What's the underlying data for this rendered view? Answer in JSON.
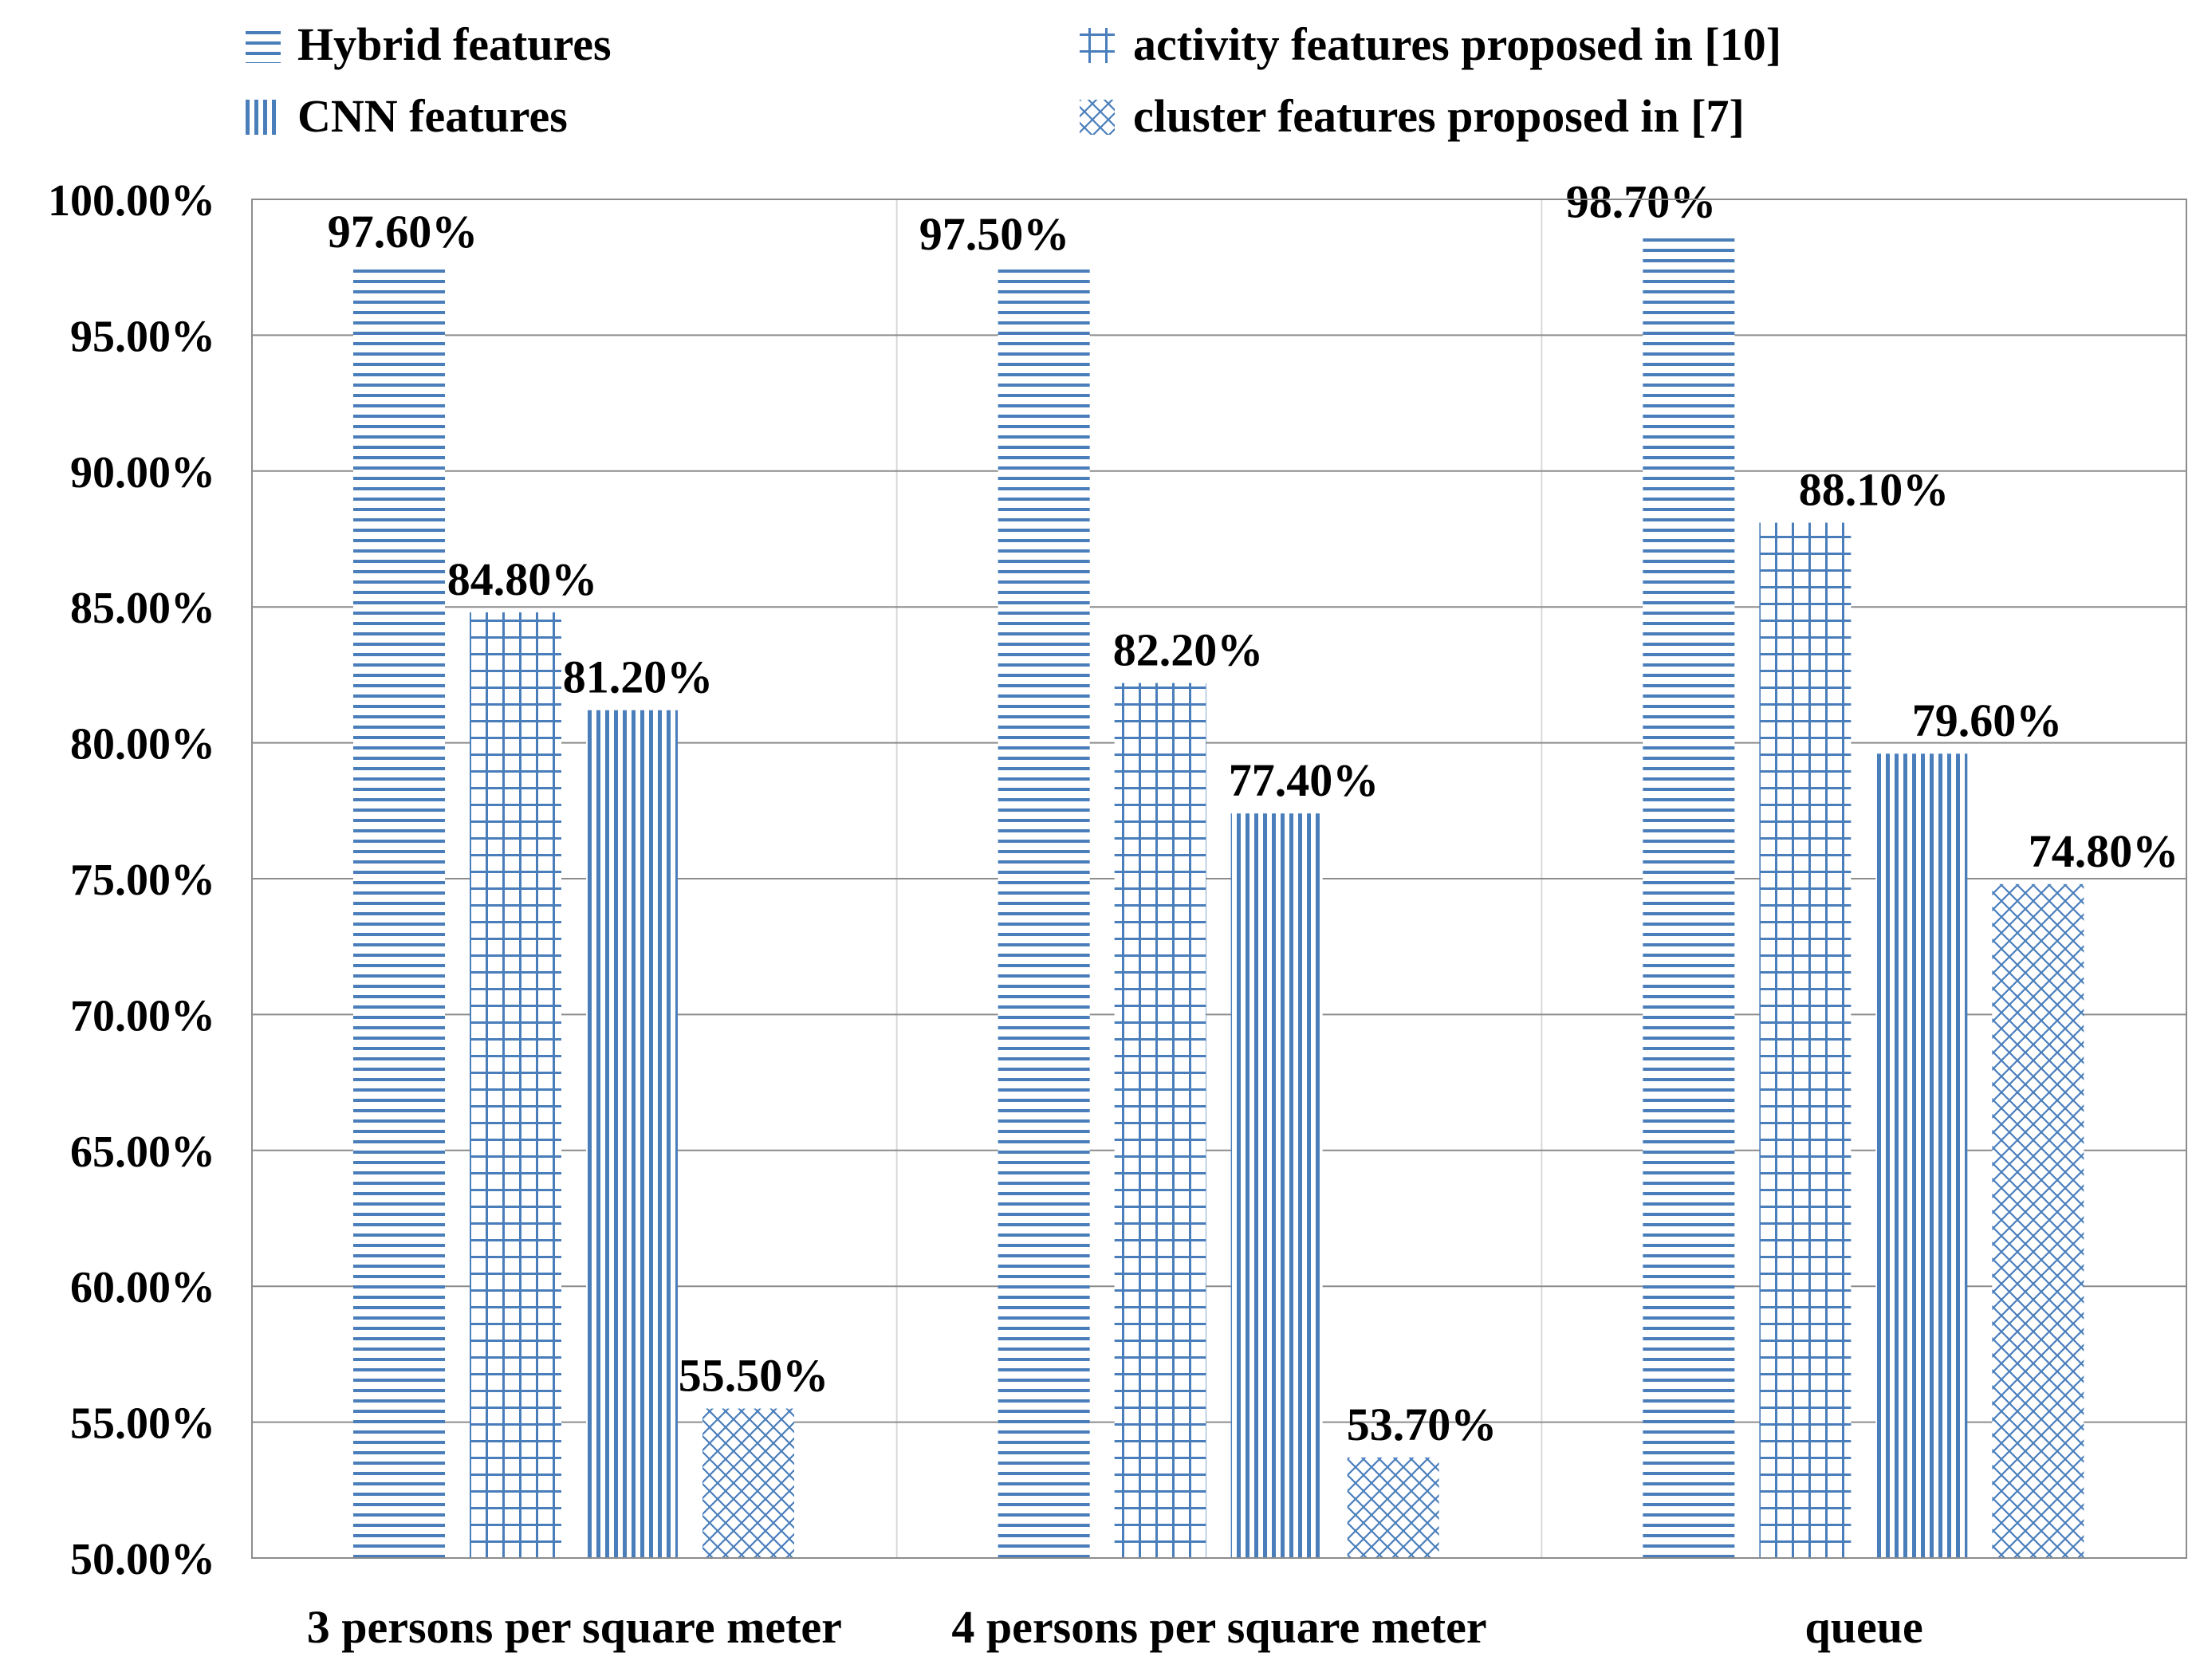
{
  "chart_data": {
    "type": "bar",
    "title": "",
    "xlabel": "",
    "ylabel": "",
    "ylim": [
      0.5,
      1.0
    ],
    "yticks": [
      0.5,
      0.55,
      0.6,
      0.65,
      0.7,
      0.75,
      0.8,
      0.85,
      0.9,
      0.95,
      1.0
    ],
    "ytick_labels": [
      "50.00%",
      "55.00%",
      "60.00%",
      "65.00%",
      "70.00%",
      "75.00%",
      "80.00%",
      "85.00%",
      "90.00%",
      "95.00%",
      "100.00%"
    ],
    "categories": [
      "3 persons per square meter",
      "4 persons per square meter",
      "queue"
    ],
    "grid": true,
    "legend_position": "top",
    "series": [
      {
        "name": "Hybrid features",
        "pattern": "horizontal",
        "values": [
          0.976,
          0.975,
          0.987
        ],
        "labels": [
          "97.60%",
          "97.50%",
          "98.70%"
        ]
      },
      {
        "name": "activity features proposed in [10]",
        "pattern": "grid",
        "values": [
          0.848,
          0.822,
          0.881
        ],
        "labels": [
          "84.80%",
          "82.20%",
          "88.10%"
        ]
      },
      {
        "name": "CNN features",
        "pattern": "vertical",
        "values": [
          0.812,
          0.774,
          0.796
        ],
        "labels": [
          "81.20%",
          "77.40%",
          "79.60%"
        ]
      },
      {
        "name": "cluster features proposed in [7]",
        "pattern": "crosshatch",
        "values": [
          0.555,
          0.537,
          0.748
        ],
        "labels": [
          "55.50%",
          "53.70%",
          "74.80%"
        ]
      }
    ],
    "colors": {
      "bar": "#4a7ebb",
      "grid": "#8c8c8c",
      "background": "#ffffff"
    }
  }
}
